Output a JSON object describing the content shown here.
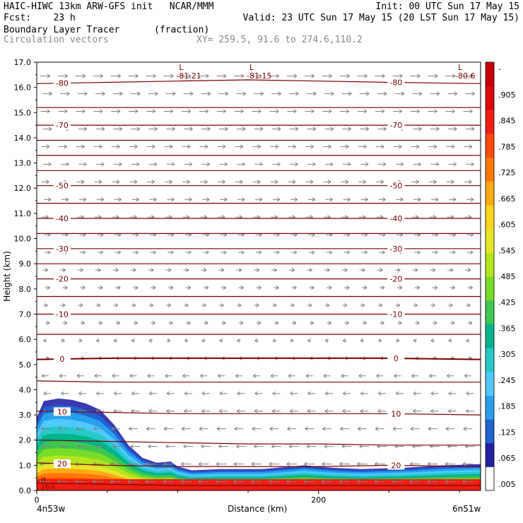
{
  "header": {
    "line1_left": "HAIC-HIWC 13km ARW-GFS init   NCAR/MMM",
    "line1_right": "Init: 00 UTC Sun 17 May 15",
    "line2_left": "Fcst:    23 h",
    "line2_right": "Valid: 23 UTC Sun 17 May 15 (20 LST Sun 17 May 15)",
    "line3_left": "Boundary Layer Tracer",
    "line3_mid": "(fraction)",
    "line4_left": "Circulation vectors",
    "line4_mid": "XY= 259.5, 91.6 to 274.6,110.2"
  },
  "footer": {
    "left": "4n53w",
    "center": "Distance (km)",
    "right": "6n51w"
  },
  "colors": {
    "contour": "#7a0000",
    "vector": "#808080",
    "axis": "#000000"
  },
  "chart_data": {
    "type": "heatmap",
    "title": "Boundary Layer Tracer",
    "xlabel": "Distance (km)",
    "ylabel": "Height (km)",
    "xlim": [
      0,
      315
    ],
    "ylim": [
      0,
      17
    ],
    "xticks": [
      {
        "value": 0,
        "label": "0"
      },
      {
        "value": 200,
        "label": "200"
      }
    ],
    "yticks": [
      "0.0",
      "1.0",
      "2.0",
      "3.0",
      "4.0",
      "5.0",
      "6.0",
      "7.0",
      "8.0",
      "9.0",
      "10.0",
      "11.0",
      "12.0",
      "13.0",
      "14.0",
      "15.0",
      "16.0",
      "17.0"
    ],
    "colorbar": {
      "labels": [
        ".005",
        ".065",
        ".125",
        ".185",
        ".245",
        ".305",
        ".365",
        ".425",
        ".485",
        ".545",
        ".605",
        ".665",
        ".725",
        ".785",
        ".845",
        ".905",
        "-"
      ],
      "colors": [
        "#ffffff",
        "#2020a0",
        "#1e64d2",
        "#28a0f0",
        "#50c8ff",
        "#28c8c8",
        "#00b48c",
        "#3cc850",
        "#78dc28",
        "#b4e61e",
        "#e6e628",
        "#ffd21e",
        "#ffaa14",
        "#ff780a",
        "#ff4b0a",
        "#f01e14",
        "#dc0a0a",
        "#c80000"
      ]
    },
    "temperature_contours": [
      {
        "value": -80,
        "label": "-80",
        "y": [
          16.15,
          16.2,
          16.25,
          16.3,
          16.25,
          16.2,
          16.15
        ]
      },
      {
        "value": -75,
        "label": "",
        "y": [
          15.2,
          15.2,
          15.2,
          15.2,
          15.2,
          15.2,
          15.2
        ]
      },
      {
        "value": -70,
        "label": "-70",
        "y": [
          14.5,
          14.5,
          14.5,
          14.5,
          14.5,
          14.5,
          14.5
        ]
      },
      {
        "value": -65,
        "label": "",
        "y": [
          13.9,
          13.9,
          13.9,
          13.9,
          13.9,
          13.9,
          13.9
        ]
      },
      {
        "value": -60,
        "label": "",
        "y": [
          13.3,
          13.3,
          13.3,
          13.3,
          13.3,
          13.3,
          13.3
        ]
      },
      {
        "value": -55,
        "label": "",
        "y": [
          12.7,
          12.7,
          12.7,
          12.7,
          12.7,
          12.7,
          12.7
        ]
      },
      {
        "value": -50,
        "label": "-50",
        "y": [
          12.1,
          12.1,
          12.1,
          12.1,
          12.1,
          12.1,
          12.1
        ]
      },
      {
        "value": -45,
        "label": "",
        "y": [
          11.4,
          11.4,
          11.4,
          11.4,
          11.4,
          11.4,
          11.4
        ]
      },
      {
        "value": -40,
        "label": "-40",
        "y": [
          10.8,
          10.8,
          10.8,
          10.8,
          10.8,
          10.8,
          10.8
        ]
      },
      {
        "value": -35,
        "label": "",
        "y": [
          10.2,
          10.2,
          10.2,
          10.2,
          10.2,
          10.2,
          10.2
        ]
      },
      {
        "value": -30,
        "label": "-30",
        "y": [
          9.6,
          9.6,
          9.6,
          9.6,
          9.6,
          9.6,
          9.6
        ]
      },
      {
        "value": -25,
        "label": "",
        "y": [
          9.0,
          9.0,
          9.0,
          9.0,
          9.0,
          9.0,
          9.0
        ]
      },
      {
        "value": -20,
        "label": "-20",
        "y": [
          8.4,
          8.4,
          8.4,
          8.4,
          8.4,
          8.4,
          8.4
        ]
      },
      {
        "value": -15,
        "label": "",
        "y": [
          7.7,
          7.7,
          7.7,
          7.7,
          7.7,
          7.7,
          7.7
        ]
      },
      {
        "value": -10,
        "label": "-10",
        "y": [
          7.0,
          7.0,
          7.0,
          7.0,
          7.0,
          7.0,
          7.0
        ]
      },
      {
        "value": -5,
        "label": "",
        "y": [
          6.2,
          6.2,
          6.2,
          6.2,
          6.2,
          6.2,
          6.2
        ]
      },
      {
        "value": 0,
        "label": "0",
        "y": [
          5.2,
          5.25,
          5.25,
          5.25,
          5.25,
          5.25,
          5.2
        ]
      },
      {
        "value": 5,
        "label": "",
        "y": [
          4.35,
          4.3,
          4.3,
          4.3,
          4.3,
          4.3,
          4.3
        ]
      },
      {
        "value": 10,
        "label": "10",
        "y": [
          3.15,
          3.1,
          3.05,
          3.05,
          3.05,
          3.05,
          3.0
        ]
      },
      {
        "value": 15,
        "label": "",
        "y": [
          2.0,
          1.95,
          1.9,
          1.85,
          1.85,
          1.8,
          1.8
        ]
      },
      {
        "value": 20,
        "label": "20",
        "y": [
          1.1,
          1.0,
          0.95,
          0.95,
          0.95,
          1.0,
          0.95
        ]
      },
      {
        "value": 25,
        "label": "",
        "y": [
          0.3,
          0.25,
          0.2,
          0.2,
          0.2,
          0.2,
          0.2
        ]
      }
    ],
    "contour_x": [
      0,
      50,
      100,
      150,
      200,
      250,
      315
    ],
    "lows": [
      {
        "x": 105,
        "y": 16.75,
        "label": "-81.21"
      },
      {
        "x": 155,
        "y": 16.75,
        "label": "-81.15"
      },
      {
        "x": 303,
        "y": 16.75,
        "label": "-80.6"
      }
    ],
    "highs": [
      {
        "x": 3,
        "y": 0.3,
        "label": "26.0"
      }
    ],
    "tracer_top_profile": {
      "x": [
        0,
        5,
        15,
        25,
        35,
        45,
        55,
        65,
        75,
        85,
        95,
        100,
        110,
        130,
        160,
        190,
        210,
        230,
        260,
        290,
        315
      ],
      "top": [
        2.9,
        3.55,
        3.65,
        3.6,
        3.45,
        3.2,
        2.6,
        1.8,
        1.3,
        1.1,
        1.15,
        0.95,
        0.8,
        0.85,
        0.85,
        1.0,
        0.9,
        0.85,
        0.9,
        1.0,
        1.05
      ]
    },
    "vector_field": {
      "x_spacing_km": 12.5,
      "y_spacing_km": 0.7,
      "upper_direction": "east",
      "lower_direction": "west",
      "transition_height_km": 6.5
    }
  }
}
